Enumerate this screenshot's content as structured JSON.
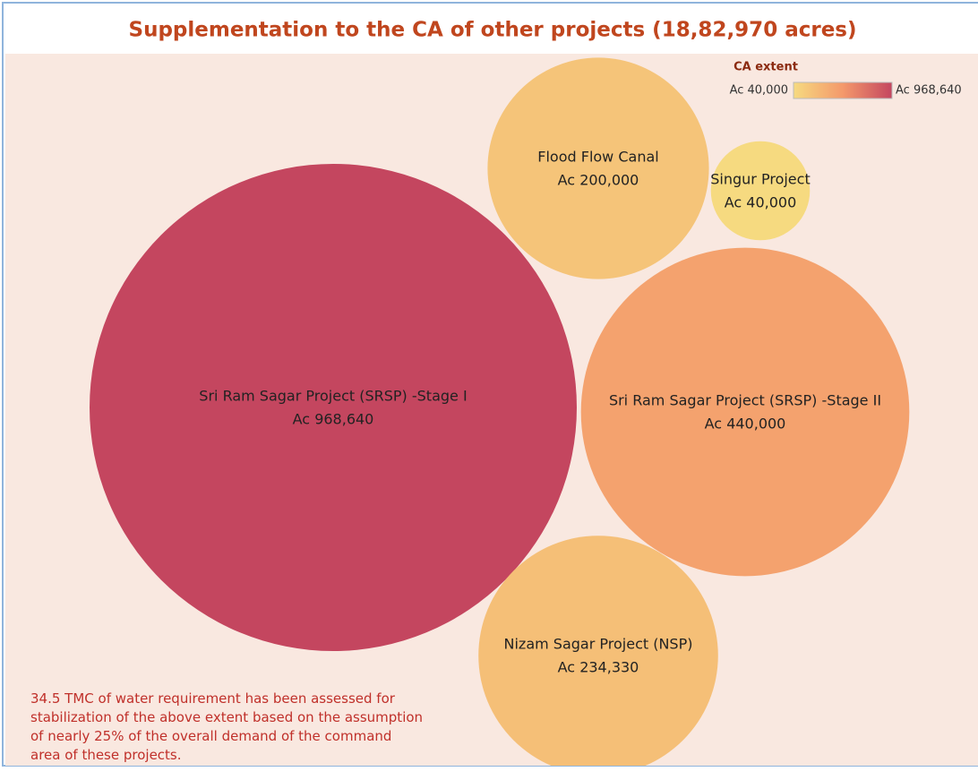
{
  "chart_data": {
    "type": "packed_bubble",
    "title": "Supplementation to the CA of other projects (18,82,970 acres)",
    "categories": [
      "Sri Ram Sagar Project (SRSP) -Stage I",
      "Sri Ram Sagar Project (SRSP) -Stage II",
      "Flood Flow Canal",
      "Singur Project",
      "Nizam Sagar Project (NSP)"
    ],
    "values": [
      968640,
      440000,
      200000,
      40000,
      234330
    ],
    "value_labels": [
      "Ac 968,640",
      "Ac 440,000",
      "Ac 200,000",
      "Ac 40,000",
      "Ac 234,330"
    ],
    "color_scale": {
      "title": "CA extent",
      "range": [
        {
          "value": 40000,
          "label": "Ac 40,000"
        },
        {
          "value": 968640,
          "label": "Ac 968,640"
        }
      ],
      "colors": [
        "#f6da80",
        "#f4996b",
        "#c4465f"
      ]
    },
    "annotation": "34.5 TMC of water requirement has been assessed for stabilization of the above extent based on the assumption of nearly 25% of the overall demand of the command area of these projects."
  }
}
